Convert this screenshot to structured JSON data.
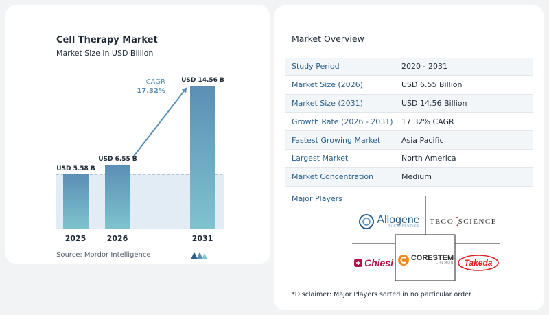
{
  "chart": {
    "title": "Cell Therapy Market",
    "subtitle": "Market Size in USD Billion",
    "source": "Source:  Mordor Intelligence",
    "cagr_label": "CAGR",
    "cagr_value": "17.32%"
  },
  "chart_data": {
    "type": "bar",
    "categories": [
      "2025",
      "2026",
      "2031"
    ],
    "values": [
      5.58,
      6.55,
      14.56
    ],
    "data_labels": [
      "USD 5.58 B",
      "USD 6.55 B",
      "USD 14.56 B"
    ],
    "title": "Cell Therapy Market",
    "subtitle": "Market Size in USD Billion",
    "xlabel": "",
    "ylabel": "",
    "ylim": [
      0,
      14.56
    ],
    "grid": false,
    "legend": "none",
    "bar_color": "#5b8fb5",
    "bar_color_bottom": "#7fc3cf",
    "shade_color": "#e2ecf4",
    "arrow_color": "#5b8fb5"
  },
  "overview": {
    "title": "Market Overview",
    "rows": [
      {
        "label": "Study Period",
        "value": "2020 - 2031"
      },
      {
        "label": "Market Size (2026)",
        "value": "USD 6.55 Billion"
      },
      {
        "label": "Market Size (2031)",
        "value": "USD 14.56 Billion"
      },
      {
        "label": "Growth Rate (2026 - 2031)",
        "value": "17.32% CAGR"
      },
      {
        "label": "Fastest Growing Market",
        "value": "Asia Pacific"
      },
      {
        "label": "Largest Market",
        "value": "North America"
      },
      {
        "label": "Market Concentration",
        "value": "Medium"
      }
    ]
  },
  "players": {
    "title": "Major Players",
    "allogene": "Allogene",
    "allogene_sub": "THERAPEUTICS",
    "tego": "TEGO",
    "science": "SCIENCE",
    "chiesi": "Chiesi",
    "corestem": "CORESTEM",
    "corestem_sub": "CHEMON",
    "takeda": "Takeda"
  },
  "disclaimer": "*Disclaimer: Major Players sorted in no particular order",
  "colors": {
    "accent": "#2b5f8a",
    "bar": "#5b8fb5",
    "teal": "#7fc3cf"
  }
}
